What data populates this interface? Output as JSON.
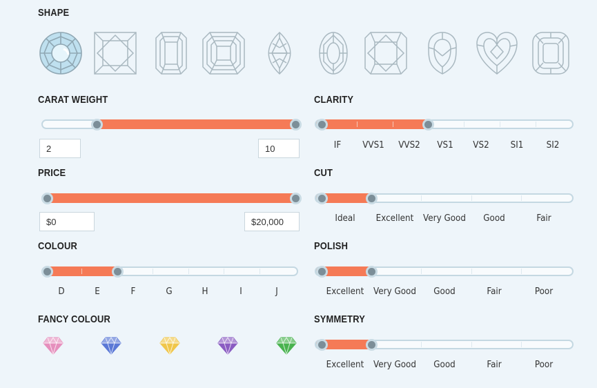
{
  "shape": {
    "title": "SHAPE",
    "items": [
      {
        "name": "round",
        "selected": true
      },
      {
        "name": "princess",
        "selected": false
      },
      {
        "name": "emerald",
        "selected": false
      },
      {
        "name": "asscher",
        "selected": false
      },
      {
        "name": "marquise",
        "selected": false
      },
      {
        "name": "oval",
        "selected": false
      },
      {
        "name": "radiant",
        "selected": false
      },
      {
        "name": "pear",
        "selected": false
      },
      {
        "name": "heart",
        "selected": false
      },
      {
        "name": "cushion",
        "selected": false
      }
    ]
  },
  "carat": {
    "title": "CARAT WEIGHT",
    "min_value": "2",
    "max_value": "10",
    "range": [
      2,
      10
    ],
    "scale": [
      0,
      10.8
    ]
  },
  "price": {
    "title": "PRICE",
    "min_value": "$0",
    "max_value": "$20,000"
  },
  "colour": {
    "title": "COLOUR",
    "grades": [
      "D",
      "E",
      "F",
      "G",
      "H",
      "I",
      "J"
    ],
    "selected_to": "F"
  },
  "fancy_colour": {
    "title": "FANCY COLOUR",
    "gems": [
      {
        "name": "pink",
        "color": "#e58fbd"
      },
      {
        "name": "blue",
        "color": "#5a78d6"
      },
      {
        "name": "yellow",
        "color": "#f0c64a"
      },
      {
        "name": "purple",
        "color": "#8a5cc2"
      },
      {
        "name": "green",
        "color": "#48b24e"
      }
    ]
  },
  "clarity": {
    "title": "CLARITY",
    "grades": [
      "IF",
      "VVS1",
      "VVS2",
      "VS1",
      "VS2",
      "SI1",
      "SI2"
    ],
    "selected_to": "VS1"
  },
  "cut": {
    "title": "CUT",
    "grades": [
      "Ideal",
      "Excellent",
      "Very Good",
      "Good",
      "Fair"
    ],
    "selected_to": "Excellent"
  },
  "polish": {
    "title": "POLISH",
    "grades": [
      "Excellent",
      "Very Good",
      "Good",
      "Fair",
      "Poor"
    ],
    "selected_to": "Very Good"
  },
  "symmetry": {
    "title": "SYMMETRY",
    "grades": [
      "Excellent",
      "Very Good",
      "Good",
      "Fair",
      "Poor"
    ],
    "selected_to": "Very Good"
  },
  "colors": {
    "accent": "#f57a56",
    "track_border": "#c4d8e2",
    "handle": "#7c8e98",
    "icon_stroke": "#a9b8c0",
    "selected_fill": "#bfe0ef"
  }
}
